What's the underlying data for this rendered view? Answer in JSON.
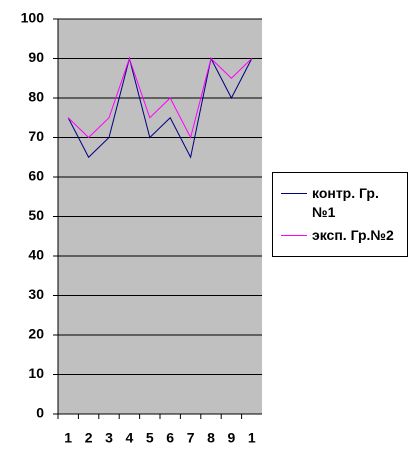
{
  "chart_data": {
    "type": "line",
    "categories": [
      "1",
      "2",
      "3",
      "4",
      "5",
      "6",
      "7",
      "8",
      "9",
      "1"
    ],
    "series": [
      {
        "name": "контр. Гр. №1",
        "color": "#000080",
        "values": [
          75,
          65,
          70,
          90,
          70,
          75,
          65,
          90,
          80,
          90
        ]
      },
      {
        "name": "эксп. Гр.№2",
        "color": "#ff00ff",
        "values": [
          75,
          70,
          75,
          90,
          75,
          80,
          70,
          90,
          85,
          90
        ]
      }
    ],
    "ylim": [
      0,
      100
    ],
    "yticks": [
      0,
      10,
      20,
      30,
      40,
      50,
      60,
      70,
      80,
      90,
      100
    ],
    "grid": true,
    "plot_background": "#c0c0c0",
    "legend": "right"
  }
}
